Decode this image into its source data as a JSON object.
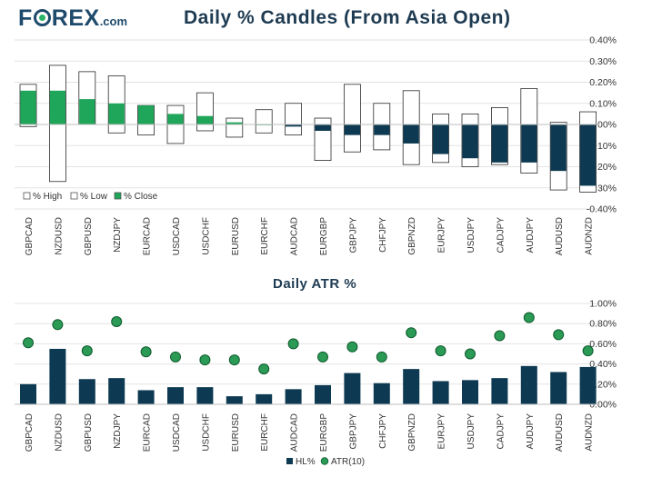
{
  "logo": {
    "text_before": "F",
    "text_after": "REX",
    "suffix": ".com"
  },
  "colors": {
    "navy": "#0d3a52",
    "green": "#1fa65a",
    "dot": "#2a9a55",
    "grid": "#e3e3e3"
  },
  "chart_data": [
    {
      "type": "candlestick",
      "title": "Daily % Candles (From Asia Open)",
      "categories": [
        "GBPCAD",
        "NZDUSD",
        "GBPUSD",
        "NZDJPY",
        "EURCAD",
        "USDCAD",
        "USDCHF",
        "EURUSD",
        "EURCHF",
        "AUDCAD",
        "EURGBP",
        "GBPJPY",
        "CHFJPY",
        "GBPNZD",
        "EURJPY",
        "USDJPY",
        "CADJPY",
        "AUDJPY",
        "AUDUSD",
        "AUDNZD"
      ],
      "series": [
        {
          "name": "% High",
          "values": [
            0.19,
            0.28,
            0.25,
            0.23,
            0.09,
            0.09,
            0.15,
            0.03,
            0.07,
            0.1,
            0.03,
            0.19,
            0.1,
            0.16,
            0.05,
            0.05,
            0.08,
            0.17,
            0.01,
            0.06
          ]
        },
        {
          "name": "% Low",
          "values": [
            -0.01,
            -0.27,
            0.0,
            -0.04,
            -0.05,
            -0.09,
            -0.03,
            -0.06,
            -0.04,
            -0.05,
            -0.17,
            -0.13,
            -0.12,
            -0.19,
            -0.18,
            -0.2,
            -0.19,
            -0.23,
            -0.31,
            -0.32
          ]
        },
        {
          "name": "% Close",
          "values": [
            0.16,
            0.16,
            0.12,
            0.1,
            0.09,
            0.05,
            0.04,
            0.01,
            0.0,
            -0.01,
            -0.03,
            -0.05,
            -0.05,
            -0.09,
            -0.14,
            -0.16,
            -0.18,
            -0.18,
            -0.22,
            -0.29
          ]
        }
      ],
      "y_ticks": [
        "0.40%",
        "0.30%",
        "0.20%",
        "0.10%",
        "0.00%",
        "-0.10%",
        "-0.20%",
        "-0.30%",
        "-0.40%"
      ],
      "ylim": [
        -0.4,
        0.4
      ],
      "legend_position": "bottom-left",
      "grid": true
    },
    {
      "type": "bar",
      "title": "Daily ATR %",
      "categories": [
        "GBPCAD",
        "NZDUSD",
        "GBPUSD",
        "NZDJPY",
        "EURCAD",
        "USDCAD",
        "USDCHF",
        "EURUSD",
        "EURCHF",
        "AUDCAD",
        "EURGBP",
        "GBPJPY",
        "CHFJPY",
        "GBPNZD",
        "EURJPY",
        "USDJPY",
        "CADJPY",
        "AUDJPY",
        "AUDUSD",
        "AUDNZD"
      ],
      "series": [
        {
          "name": "HL%",
          "values": [
            0.2,
            0.55,
            0.25,
            0.26,
            0.14,
            0.17,
            0.17,
            0.08,
            0.1,
            0.15,
            0.19,
            0.31,
            0.21,
            0.35,
            0.23,
            0.24,
            0.26,
            0.38,
            0.32,
            0.37
          ]
        },
        {
          "name": "ATR(10)",
          "values": [
            0.61,
            0.79,
            0.53,
            0.82,
            0.52,
            0.47,
            0.44,
            0.44,
            0.35,
            0.6,
            0.47,
            0.57,
            0.47,
            0.71,
            0.53,
            0.5,
            0.68,
            0.86,
            0.69,
            0.53
          ]
        }
      ],
      "y_ticks": [
        "1.00%",
        "0.80%",
        "0.60%",
        "0.40%",
        "0.20%",
        "0.00%"
      ],
      "ylim": [
        0,
        1.0
      ],
      "legend_position": "bottom-center",
      "grid": true
    }
  ]
}
